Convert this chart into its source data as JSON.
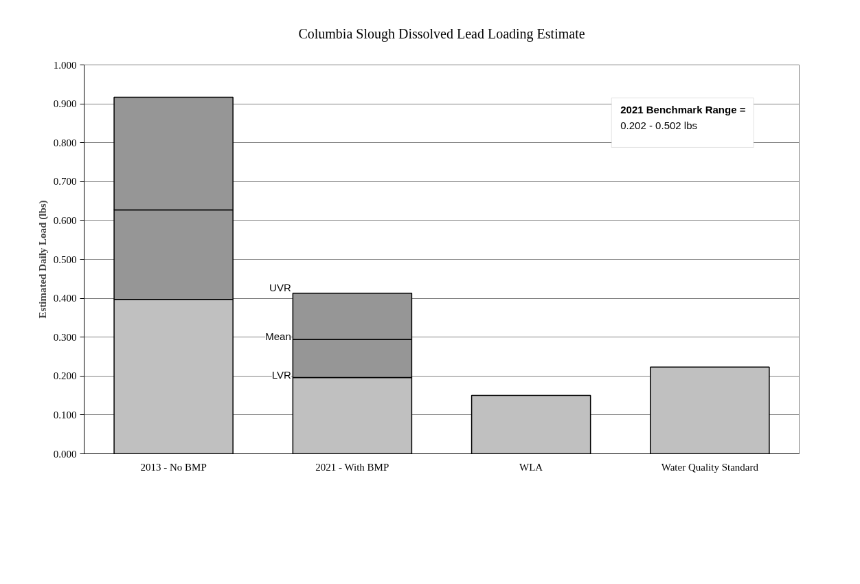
{
  "chart_data": {
    "type": "bar",
    "stacked": true,
    "title": "Columbia Slough Dissolved Lead Loading Estimate",
    "ylabel": "Estimated Daily Load (lbs)",
    "categories": [
      "2013 - No BMP",
      "2021 - With BMP",
      "WLA",
      "Water Quality Standard"
    ],
    "series": [
      {
        "color": "#c0c0c0",
        "values": [
          0.397,
          0.196,
          0.15,
          0.223
        ]
      },
      {
        "color": "#969696",
        "values": [
          0.23,
          0.098,
          null,
          null
        ]
      },
      {
        "color": "#969696",
        "values": [
          0.29,
          0.119,
          null,
          null
        ]
      }
    ],
    "ylim": [
      0,
      1
    ],
    "yticks": [
      {
        "value": 0,
        "label": "0.000"
      },
      {
        "value": 0.1,
        "label": "0.100"
      },
      {
        "value": 0.2,
        "label": "0.200"
      },
      {
        "value": 0.3,
        "label": "0.300"
      },
      {
        "value": 0.4,
        "label": "0.400"
      },
      {
        "value": 0.5,
        "label": "0.500"
      },
      {
        "value": 0.6,
        "label": "0.600"
      },
      {
        "value": 0.7,
        "label": "0.700"
      },
      {
        "value": 0.8,
        "label": "0.800"
      },
      {
        "value": 0.9,
        "label": "0.900"
      },
      {
        "value": 1,
        "label": "1.000"
      }
    ],
    "grid": "y",
    "annotations": [
      "UVR",
      "Mean",
      "LVR",
      "2021 Benchmark Range =",
      "0.202 - 0.502 lbs"
    ]
  }
}
